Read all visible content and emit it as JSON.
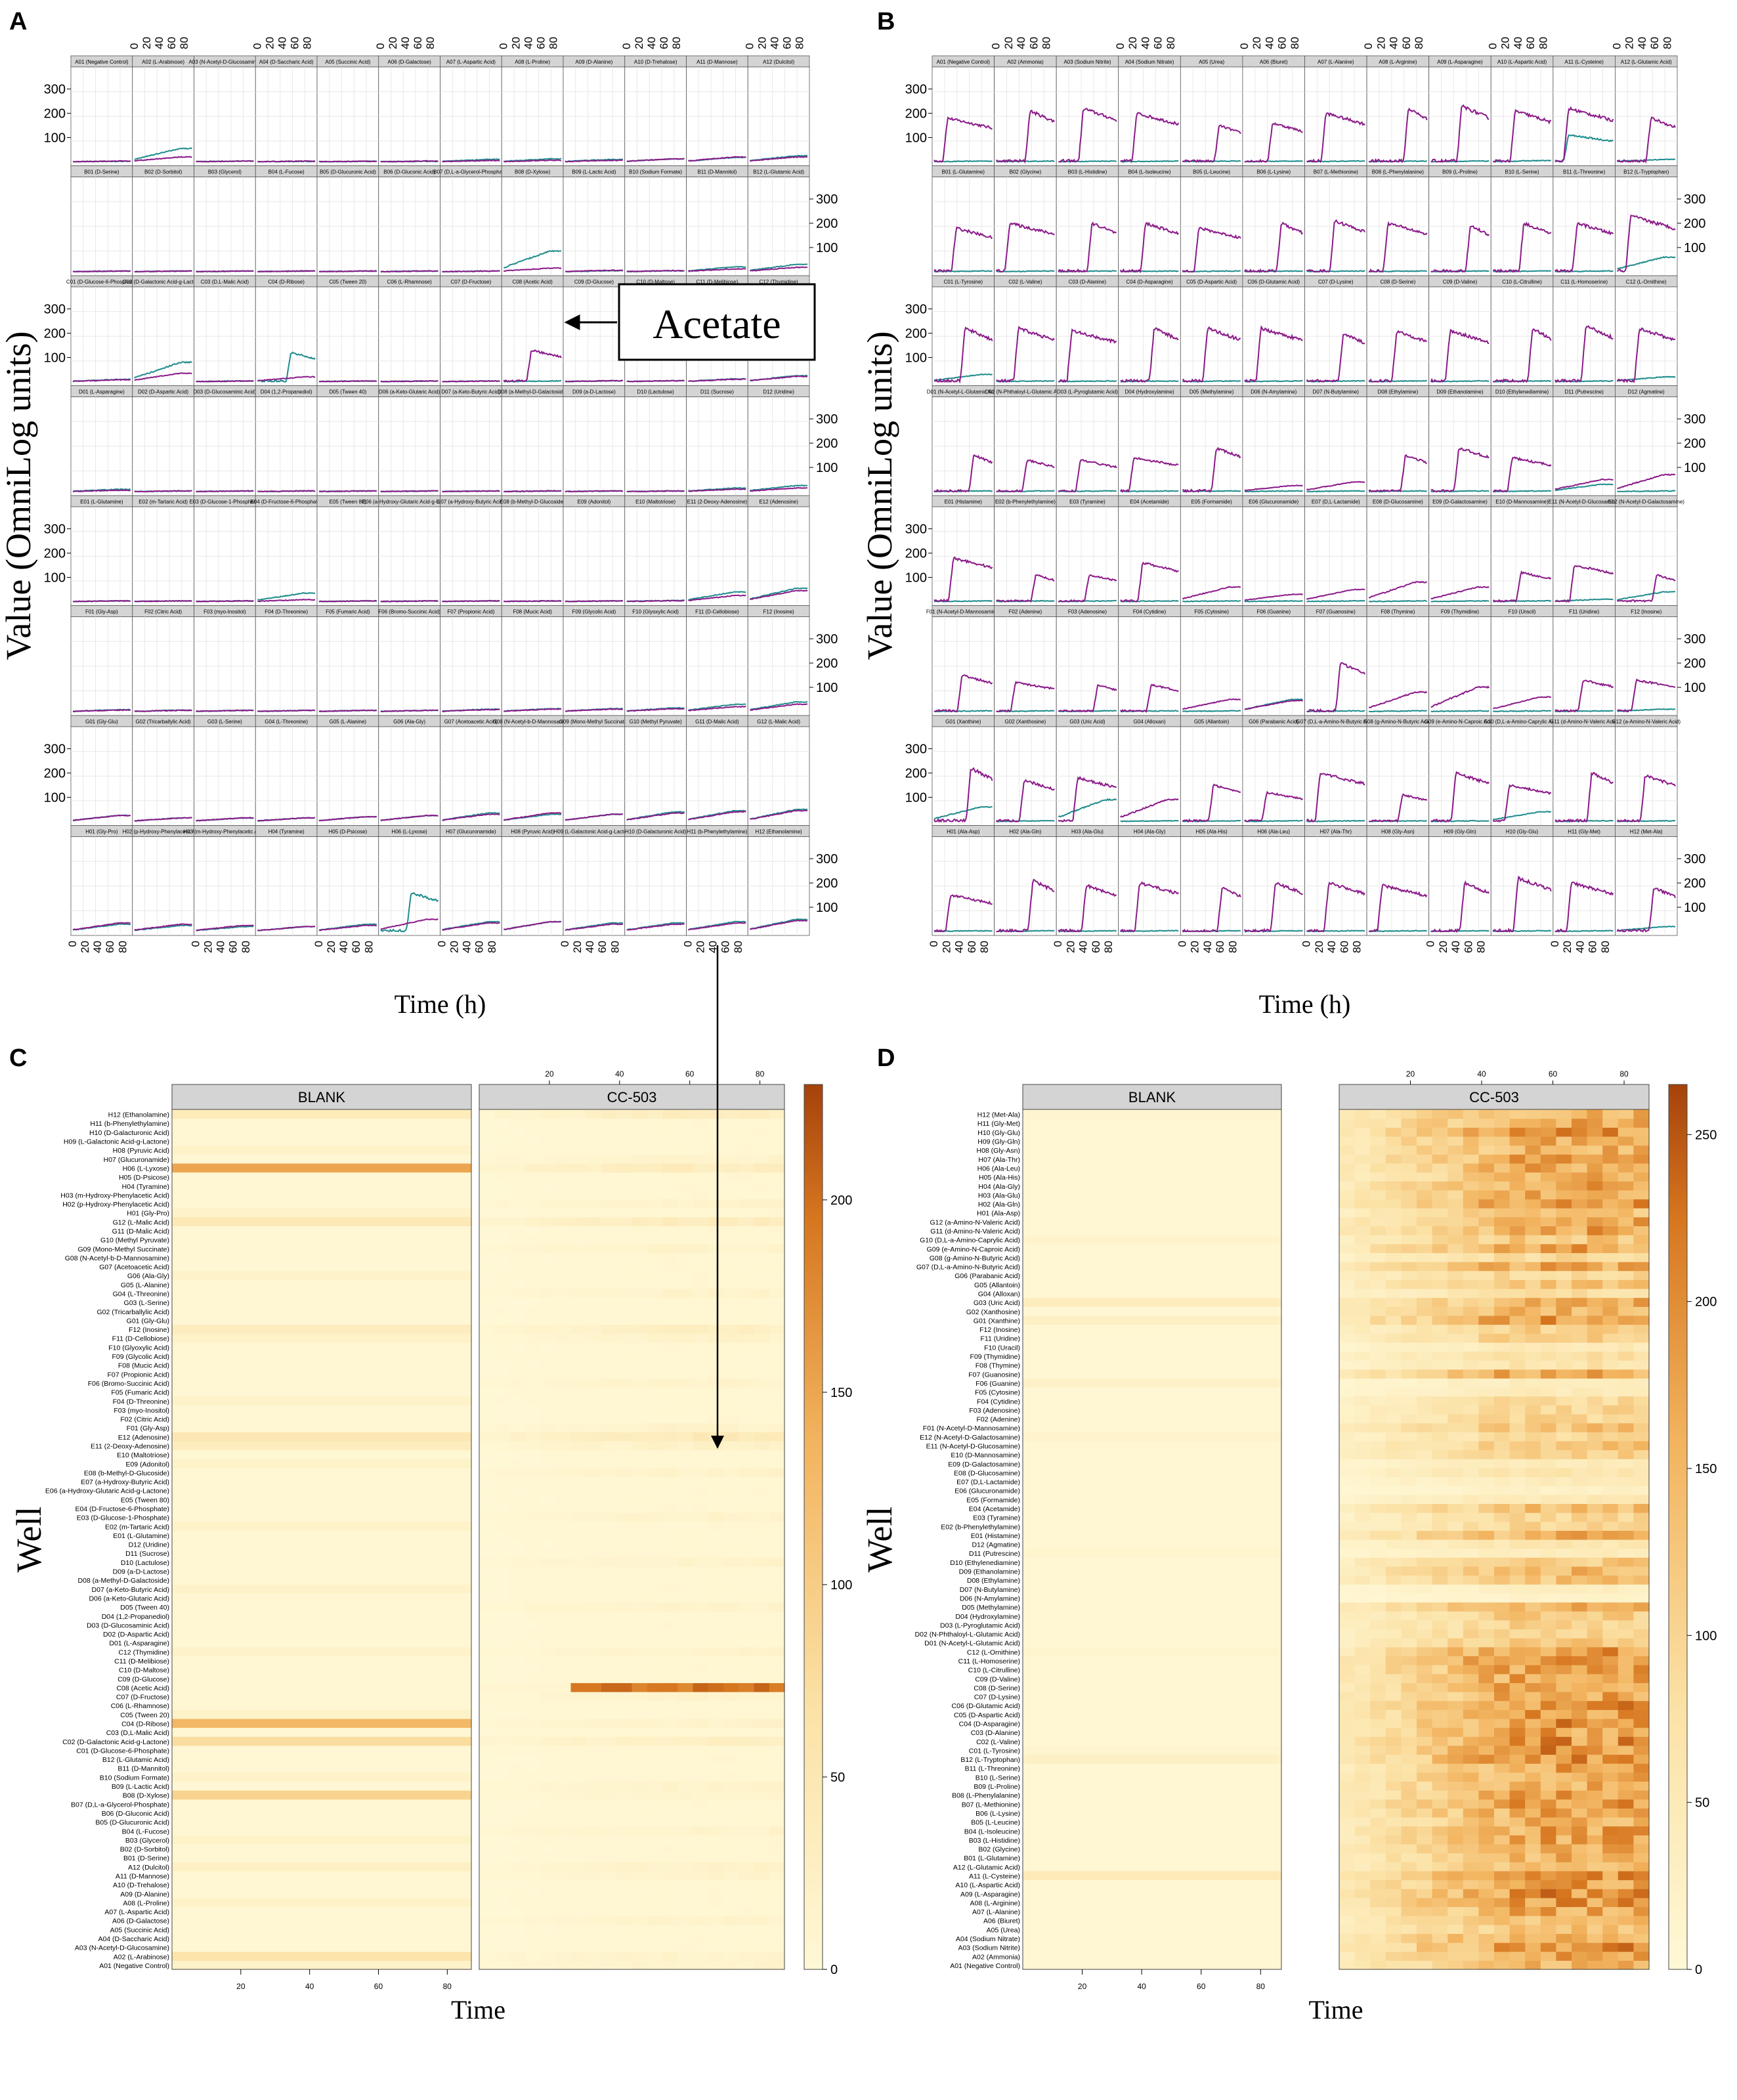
{
  "panel_letters": [
    "A",
    "B",
    "C",
    "D"
  ],
  "colors": {
    "treatment_series": "#8b1a89",
    "control_series": "#1f8c8c",
    "strip_bg": "#d4d4d4",
    "panel_grid": "#e8e8e8",
    "heat_low": "#fff8d6",
    "heat_high": "#b84a0f",
    "annotation": "#000000"
  },
  "chart_data": [
    {
      "id": "A",
      "type": "line",
      "description_label": "PM1/PM2 style trellis",
      "ylabel": "Value (OmniLog units)",
      "xlabel": "Time (h)",
      "ylim": [
        0,
        380
      ],
      "yticks": [
        100,
        200,
        300
      ],
      "xlim": [
        0,
        92
      ],
      "xticks": [
        0,
        20,
        40,
        60,
        80
      ],
      "annotation": "Acetate",
      "series": [
        "CC-503",
        "BLANK"
      ],
      "rows": [
        {
          "row": "A",
          "wells": [
            "A01 (Negative Control)",
            "A02 (L-Arabinose)",
            "A03 (N-Acetyl-D-Glucosamine)",
            "A04 (D-Saccharic Acid)",
            "A05 (Succinic Acid)",
            "A06 (D-Galactose)",
            "A07 (L-Aspartic Acid)",
            "A08 (L-Proline)",
            "A09 (D-Alanine)",
            "A10 (D-Trehalose)",
            "A11 (D-Mannose)",
            "A12 (Dulcitol)"
          ],
          "ctrl": [
            2,
            55,
            3,
            2,
            2,
            2,
            10,
            12,
            10,
            12,
            18,
            25
          ],
          "trt": [
            3,
            20,
            3,
            3,
            2,
            3,
            5,
            6,
            6,
            12,
            20,
            20
          ]
        },
        {
          "row": "B",
          "wells": [
            "B01 (D-Serine)",
            "B02 (D-Sorbitol)",
            "B03 (Glycerol)",
            "B04 (L-Fucose)",
            "B05 (D-Glucuronic Acid)",
            "B06 (D-Gluconic Acid)",
            "B07 (D,L-a-Glycerol-Phosphate)",
            "B08 (D-Xylose)",
            "B09 (L-Lactic Acid)",
            "B10 (Sodium Formate)",
            "B11 (D-Mannitol)",
            "B12 (L-Glutamic Acid)"
          ],
          "ctrl": [
            3,
            3,
            3,
            3,
            3,
            3,
            3,
            85,
            4,
            4,
            20,
            30
          ],
          "trt": [
            3,
            3,
            3,
            3,
            3,
            3,
            3,
            15,
            6,
            5,
            12,
            18
          ]
        },
        {
          "row": "C",
          "wells": [
            "C01 (D-Glucose-6-Phosphate)",
            "C02 (D-Galactonic Acid-g-Lactone)",
            "C03 (D,L-Malic Acid)",
            "C04 (D-Ribose)",
            "C05 (Tween 20)",
            "C06 (L-Rhamnose)",
            "C07 (D-Fructose)",
            "C08 (Acetic Acid)",
            "C09 (D-Glucose)",
            "C10 (D-Maltose)",
            "C11 (D-Melibiose)",
            "C12 (Thymidine)"
          ],
          "ctrl": [
            10,
            80,
            3,
            120,
            3,
            3,
            3,
            3,
            4,
            4,
            12,
            25
          ],
          "trt": [
            8,
            35,
            3,
            20,
            3,
            3,
            3,
            130,
            4,
            4,
            10,
            22
          ]
        },
        {
          "row": "D",
          "wells": [
            "D01 (L-Asparagine)",
            "D02 (D-Aspartic Acid)",
            "D03 (D-Glucosaminic Acid)",
            "D04 (1,2-Propanediol)",
            "D05 (Tween 40)",
            "D06 (a-Keto-Glutaric Acid)",
            "D07 (a-Keto-Butyric Acid)",
            "D08 (a-Methyl-D-Galactoside)",
            "D09 (a-D-Lactose)",
            "D10 (Lactulose)",
            "D11 (Sucrose)",
            "D12 (Uridine)"
          ],
          "ctrl": [
            10,
            3,
            3,
            3,
            3,
            3,
            3,
            3,
            3,
            3,
            15,
            25
          ],
          "trt": [
            6,
            3,
            3,
            3,
            3,
            3,
            3,
            3,
            3,
            3,
            10,
            15
          ]
        },
        {
          "row": "E",
          "wells": [
            "E01 (L-Glutamine)",
            "E02 (m-Tartaric Acid)",
            "E03 (D-Glucose-1-Phosphate)",
            "E04 (D-Fructose-6-Phosphate)",
            "E05 (Tween 80)",
            "E06 (a-Hydroxy-Glutaric Acid-g-Lactone)",
            "E07 (a-Hydroxy-Butyric Acid)",
            "E08 (b-Methyl-D-Glucoside)",
            "E09 (Adonitol)",
            "E10 (Maltotriose)",
            "E11 (2-Deoxy-Adenosine)",
            "E12 (Adenosine)"
          ],
          "ctrl": [
            3,
            3,
            3,
            35,
            3,
            3,
            3,
            3,
            3,
            5,
            40,
            55
          ],
          "trt": [
            3,
            3,
            3,
            8,
            3,
            3,
            3,
            3,
            3,
            4,
            25,
            45
          ]
        },
        {
          "row": "F",
          "wells": [
            "F01 (Gly-Asp)",
            "F02 (Citric Acid)",
            "F03 (myo-Inositol)",
            "F04 (D-Threonine)",
            "F05 (Fumaric Acid)",
            "F06 (Bromo-Succinic Acid)",
            "F07 (Propionic Acid)",
            "F08 (Mucic Acid)",
            "F09 (Glycolic Acid)",
            "F10 (Glyoxylic Acid)",
            "F11 (D-Cellobiose)",
            "F12 (Inosine)"
          ],
          "ctrl": [
            8,
            6,
            5,
            5,
            5,
            5,
            10,
            12,
            12,
            15,
            30,
            40
          ],
          "trt": [
            6,
            5,
            5,
            5,
            5,
            5,
            8,
            10,
            10,
            12,
            20,
            30
          ]
        },
        {
          "row": "G",
          "wells": [
            "G01 (Gly-Glu)",
            "G02 (Tricarballylic Acid)",
            "G03 (L-Serine)",
            "G04 (L-Threonine)",
            "G05 (L-Alanine)",
            "G06 (Ala-Gly)",
            "G07 (Acetoacetic Acid)",
            "G08 (N-Acetyl-b-D-Mannosamine)",
            "G09 (Mono-Methyl Succinate)",
            "G10 (Methyl Pyruvate)",
            "G11 (D-Malic Acid)",
            "G12 (L-Malic Acid)"
          ],
          "ctrl": [
            25,
            15,
            15,
            15,
            20,
            25,
            35,
            30,
            30,
            40,
            45,
            50
          ],
          "trt": [
            25,
            15,
            15,
            15,
            20,
            25,
            30,
            35,
            30,
            35,
            40,
            45
          ]
        },
        {
          "row": "H",
          "wells": [
            "H01 (Gly-Pro)",
            "H02 (p-Hydroxy-Phenylacetic Acid)",
            "H03 (m-Hydroxy-Phenylacetic Acid)",
            "H04 (Tyramine)",
            "H05 (D-Psicose)",
            "H06 (L-Lyxose)",
            "H07 (Glucuronamide)",
            "H08 (Pyruvic Acid)",
            "H09 (L-Galactonic Acid-g-Lactone)",
            "H10 (D-Galacturonic Acid)",
            "H11 (b-Phenylethylamine)",
            "H12 (Ethanolamine)"
          ],
          "ctrl": [
            30,
            25,
            20,
            20,
            30,
            160,
            40,
            40,
            35,
            35,
            40,
            50
          ],
          "trt": [
            35,
            30,
            25,
            20,
            25,
            50,
            35,
            40,
            30,
            30,
            35,
            45
          ]
        }
      ]
    },
    {
      "id": "B",
      "type": "line",
      "description_label": "PM3 nitrogen trellis",
      "ylabel": "Value (OmniLog units)",
      "xlabel": "Time (h)",
      "ylim": [
        0,
        380
      ],
      "yticks": [
        100,
        200,
        300
      ],
      "xlim": [
        0,
        92
      ],
      "xticks": [
        0,
        20,
        40,
        60,
        80
      ],
      "series": [
        "CC-503",
        "BLANK"
      ],
      "rows": [
        {
          "row": "A",
          "wells": [
            "A01 (Negative Control)",
            "A02 (Ammonia)",
            "A03 (Sodium Nitrite)",
            "A04 (Sodium Nitrate)",
            "A05 (Urea)",
            "A06 (Biuret)",
            "A07 (L-Alanine)",
            "A08 (L-Arginine)",
            "A09 (L-Asparagine)",
            "A10 (L-Aspartic Acid)",
            "A11 (L-Cysteine)",
            "A12 (L-Glutamic Acid)"
          ],
          "trt": [
            180,
            210,
            220,
            200,
            150,
            160,
            200,
            220,
            230,
            210,
            220,
            180
          ],
          "ctrl": [
            3,
            3,
            3,
            3,
            3,
            3,
            3,
            3,
            3,
            5,
            110,
            10
          ]
        },
        {
          "row": "B",
          "wells": [
            "B01 (L-Glutamine)",
            "B02 (Glycine)",
            "B03 (L-Histidine)",
            "B04 (L-Isoleucine)",
            "B05 (L-Leucine)",
            "B06 (L-Lysine)",
            "B07 (L-Methionine)",
            "B08 (L-Phenylalanine)",
            "B09 (L-Proline)",
            "B10 (L-Serine)",
            "B11 (L-Threonine)",
            "B12 (L-Tryptophan)"
          ],
          "trt": [
            180,
            200,
            200,
            200,
            180,
            200,
            210,
            200,
            190,
            200,
            200,
            230
          ],
          "ctrl": [
            3,
            3,
            3,
            3,
            3,
            3,
            3,
            3,
            3,
            3,
            3,
            60
          ]
        },
        {
          "row": "C",
          "wells": [
            "C01 (L-Tyrosine)",
            "C02 (L-Valine)",
            "C03 (D-Alanine)",
            "C04 (D-Asparagine)",
            "C05 (D-Aspartic Acid)",
            "C06 (D-Glutamic Acid)",
            "C07 (D-Lysine)",
            "C08 (D-Serine)",
            "C09 (D-Valine)",
            "C10 (L-Citrulline)",
            "C11 (L-Homoserine)",
            "C12 (L-Ornithine)"
          ],
          "trt": [
            220,
            220,
            210,
            220,
            220,
            220,
            200,
            210,
            210,
            220,
            230,
            220
          ],
          "ctrl": [
            30,
            3,
            3,
            3,
            3,
            3,
            3,
            3,
            3,
            3,
            3,
            20
          ]
        },
        {
          "row": "D",
          "wells": [
            "D01 (N-Acetyl-L-Glutamic Acid)",
            "D02 (N-Phthaloyl-L-Glutamic Acid)",
            "D03 (L-Pyroglutamic Acid)",
            "D04 (Hydroxylamine)",
            "D05 (Methylamine)",
            "D06 (N-Amylamine)",
            "D07 (N-Butylamine)",
            "D08 (Ethylamine)",
            "D09 (Ethanolamine)",
            "D10 (Ethylenediamine)",
            "D11 (Putrescine)",
            "D12 (Agmatine)"
          ],
          "trt": [
            150,
            130,
            130,
            140,
            180,
            25,
            40,
            150,
            180,
            140,
            50,
            70
          ],
          "ctrl": [
            3,
            3,
            3,
            3,
            3,
            3,
            3,
            3,
            3,
            3,
            30,
            3
          ]
        },
        {
          "row": "E",
          "wells": [
            "E01 (Histamine)",
            "E02 (b-Phenylethylamine)",
            "E03 (Tyramine)",
            "E04 (Acetamide)",
            "E05 (Formamide)",
            "E06 (Glucuronamide)",
            "E07 (D,L-Lactamide)",
            "E08 (D-Glucosamine)",
            "E09 (D-Galactosamine)",
            "E10 (D-Mannosamine)",
            "E11 (N-Acetyl-D-Glucosamine)",
            "E12 (N-Acetyl-D-Galactosamine)"
          ],
          "trt": [
            180,
            110,
            110,
            160,
            60,
            30,
            50,
            80,
            60,
            120,
            150,
            110
          ],
          "ctrl": [
            3,
            3,
            3,
            3,
            3,
            3,
            3,
            3,
            3,
            3,
            10,
            40
          ]
        },
        {
          "row": "F",
          "wells": [
            "F01 (N-Acetyl-D-Mannosamine)",
            "F02 (Adenine)",
            "F03 (Adenosine)",
            "F04 (Cytidine)",
            "F05 (Cytosine)",
            "F06 (Guanine)",
            "F07 (Guanosine)",
            "F08 (Thymine)",
            "F09 (Thymidine)",
            "F10 (Uracil)",
            "F11 (Uridine)",
            "F12 (Inosine)"
          ],
          "trt": [
            150,
            120,
            110,
            110,
            50,
            45,
            200,
            80,
            100,
            60,
            130,
            130
          ],
          "ctrl": [
            3,
            3,
            3,
            3,
            3,
            50,
            3,
            3,
            3,
            3,
            3,
            10
          ]
        },
        {
          "row": "G",
          "wells": [
            "G01 (Xanthine)",
            "G02 (Xanthosine)",
            "G03 (Uric Acid)",
            "G04 (Alloxan)",
            "G05 (Allantoin)",
            "G06 (Parabanic Acid)",
            "G07 (D,L-a-Amino-N-Butyric Acid)",
            "G08 (g-Amino-N-Butyric Acid)",
            "G09 (e-Amino-N-Caproic Acid)",
            "G10 (D,L-a-Amino-Caprylic Acid)",
            "G11 (d-Amino-N-Valeric Acid)",
            "G12 (a-Amino-N-Valeric Acid)"
          ],
          "trt": [
            220,
            170,
            180,
            90,
            150,
            120,
            200,
            110,
            200,
            150,
            200,
            190
          ],
          "ctrl": [
            60,
            3,
            90,
            3,
            3,
            3,
            3,
            3,
            3,
            40,
            3,
            3
          ]
        },
        {
          "row": "H",
          "wells": [
            "H01 (Ala-Asp)",
            "H02 (Ala-Gln)",
            "H03 (Ala-Glu)",
            "H04 (Ala-Gly)",
            "H05 (Ala-His)",
            "H06 (Ala-Leu)",
            "H07 (Ala-Thr)",
            "H08 (Gly-Asn)",
            "H09 (Gly-Gln)",
            "H10 (Gly-Glu)",
            "H11 (Gly-Met)",
            "H12 (Met-Ala)"
          ],
          "trt": [
            150,
            210,
            190,
            200,
            180,
            200,
            200,
            190,
            200,
            220,
            200,
            180
          ],
          "ctrl": [
            3,
            3,
            3,
            3,
            3,
            3,
            3,
            3,
            3,
            3,
            3,
            20
          ]
        }
      ]
    },
    {
      "id": "C",
      "type": "heatmap",
      "ylabel": "Well",
      "xlabel": "Time",
      "panels": [
        "BLANK",
        "CC-503"
      ],
      "xticks": [
        20,
        40,
        60,
        80
      ],
      "xlim": [
        0,
        87
      ],
      "colorbar_ticks": [
        0,
        50,
        100,
        150,
        200
      ],
      "colorbar_range": [
        0,
        230
      ],
      "highlights": {
        "A02 (L-Arabinose)": {
          "blank": 60,
          "cc503": 20
        },
        "C04 (D-Ribose)": {
          "blank": 130,
          "cc503": 20
        },
        "H06 (L-Lyxose)": {
          "blank": 150,
          "cc503": 40
        },
        "B08 (D-Xylose)": {
          "blank": 90,
          "cc503": 15
        },
        "C02 (D-Galactonic Acid-g-Lactone)": {
          "blank": 75,
          "cc503": 30
        },
        "C08 (Acetic Acid)": {
          "blank": 3,
          "cc503": 215,
          "onset": 25
        },
        "E12 (Adenosine)": {
          "blank": 50,
          "cc503": 45
        },
        "E11 (2-Deoxy-Adenosine)": {
          "blank": 35,
          "cc503": 25
        },
        "F12 (Inosine)": {
          "blank": 35,
          "cc503": 30
        },
        "G12 (L-Malic Acid)": {
          "blank": 45,
          "cc503": 40
        },
        "A12 (Dulcitol)": {
          "blank": 25,
          "cc503": 20
        },
        "H12 (Ethanolamine)": {
          "blank": 40,
          "cc503": 35
        }
      }
    },
    {
      "id": "D",
      "type": "heatmap",
      "ylabel": "Well",
      "xlabel": "Time",
      "panels": [
        "BLANK",
        "CC-503"
      ],
      "xticks": [
        20,
        40,
        60,
        80
      ],
      "xlim": [
        0,
        87
      ],
      "colorbar_ticks": [
        0,
        50,
        100,
        150,
        200,
        250
      ],
      "colorbar_range": [
        0,
        265
      ]
    }
  ]
}
